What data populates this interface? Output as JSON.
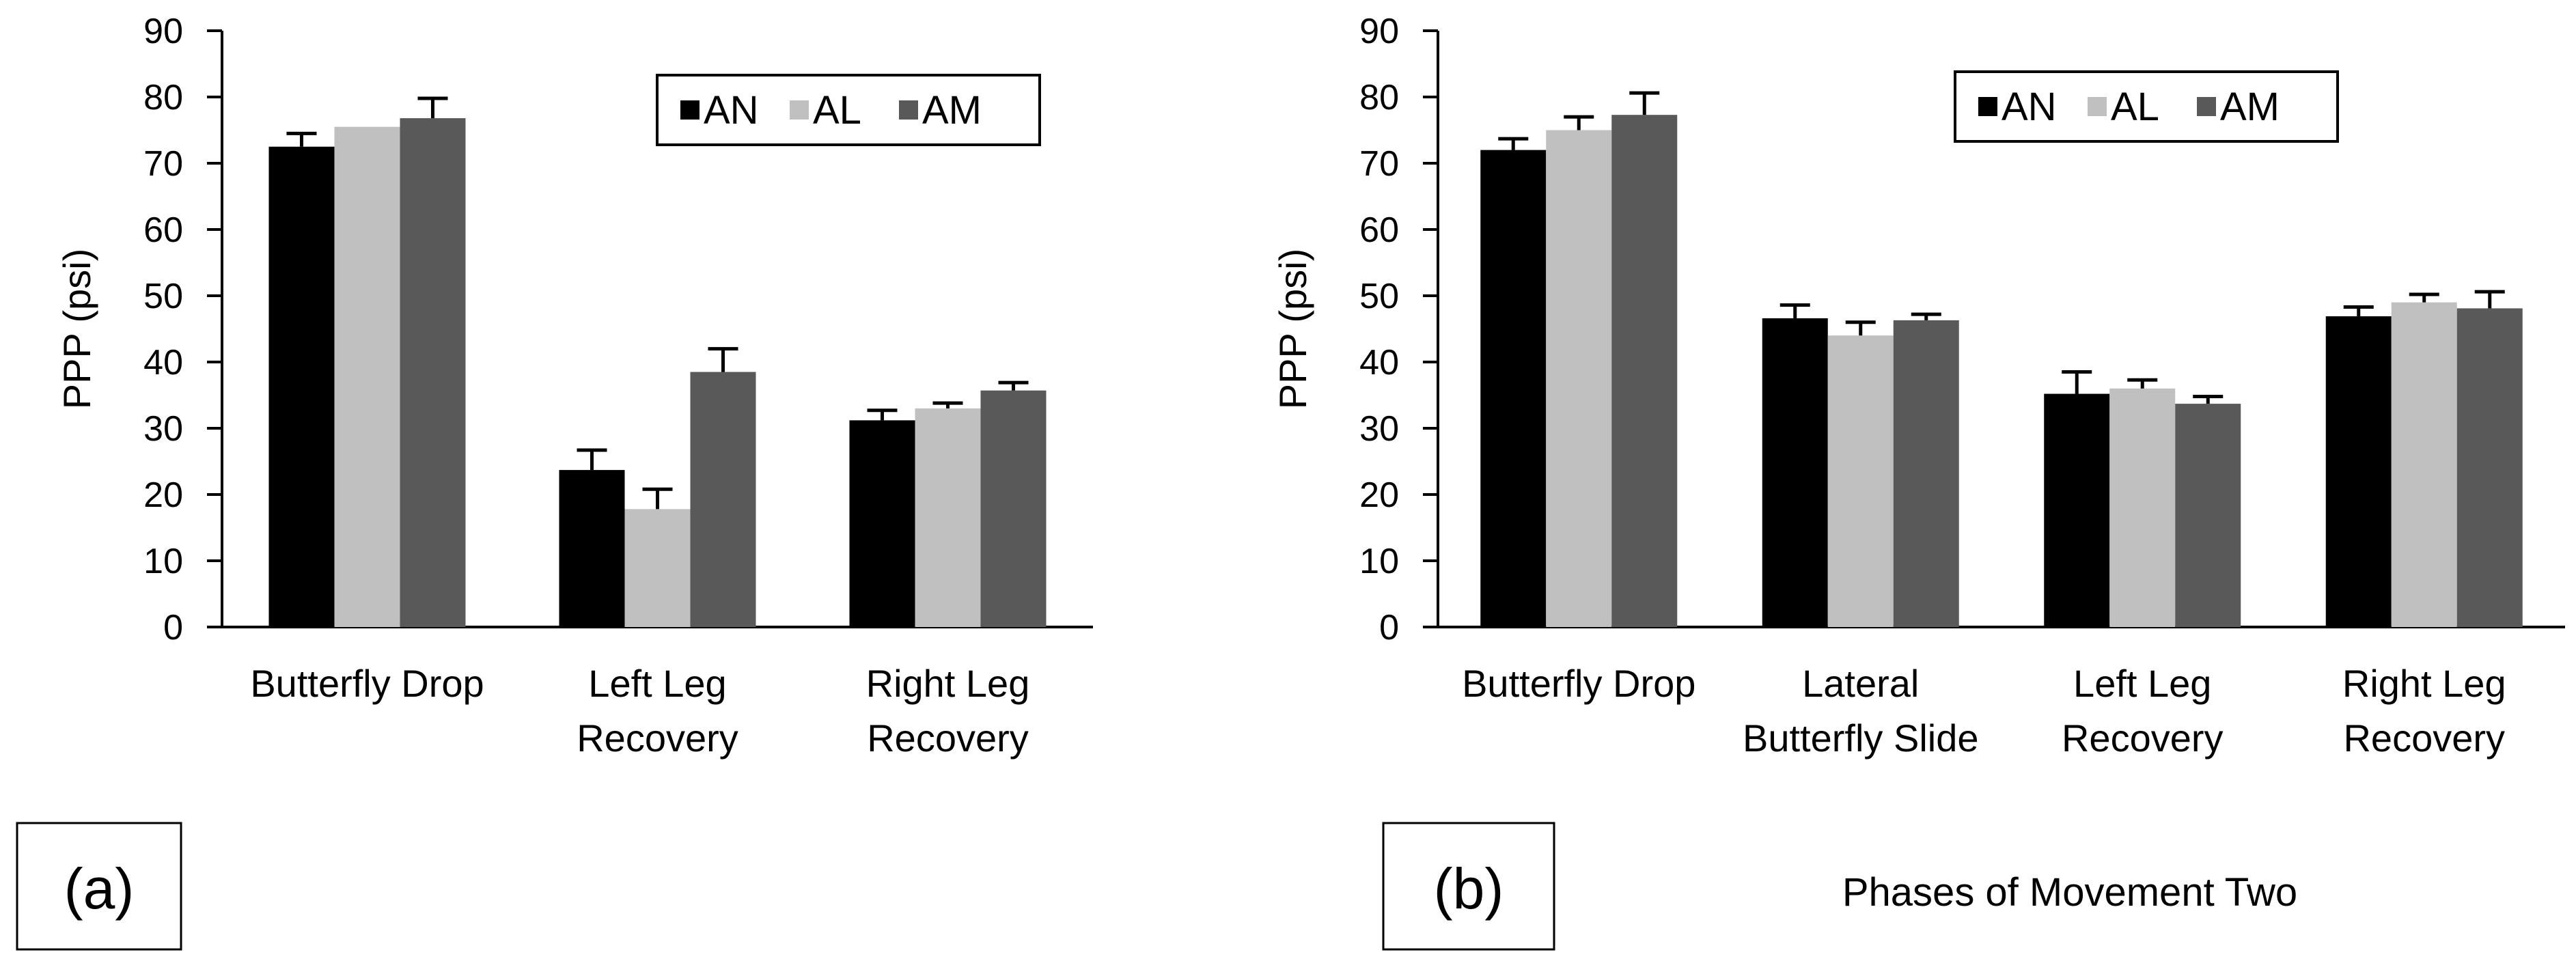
{
  "colors": {
    "AN": "#000000",
    "AL": "#c0c0c0",
    "AM": "#595959",
    "axis": "#000000",
    "background": "#ffffff"
  },
  "caption_b": "Phases of Movement Two",
  "chart_data": [
    {
      "type": "bar",
      "panel_label": "(a)",
      "ylabel": "PPP (psi)",
      "xlabel": "",
      "ylim": [
        0,
        90
      ],
      "yticks": [
        "0",
        "10",
        "20",
        "30",
        "40",
        "50",
        "60",
        "70",
        "80",
        "90"
      ],
      "grid": false,
      "legend_position": "top-right",
      "categories": [
        {
          "lines": [
            "Butterfly Drop"
          ]
        },
        {
          "lines": [
            "Left Leg",
            "Recovery"
          ]
        },
        {
          "lines": [
            "Right Leg",
            "Recovery"
          ]
        }
      ],
      "series": [
        {
          "name": "AN",
          "color": "#000000",
          "values": [
            72.5,
            23.7,
            31.2
          ],
          "errors": [
            2.0,
            3.0,
            1.5
          ]
        },
        {
          "name": "AL",
          "color": "#c0c0c0",
          "values": [
            75.5,
            17.8,
            33.0
          ],
          "errors": [
            0,
            3.0,
            0.8
          ]
        },
        {
          "name": "AM",
          "color": "#595959",
          "values": [
            76.8,
            38.5,
            35.7
          ],
          "errors": [
            3.0,
            3.5,
            1.2
          ]
        }
      ]
    },
    {
      "type": "bar",
      "panel_label": "(b)",
      "ylabel": "PPP (psi)",
      "xlabel": "Phases of Movement Two",
      "ylim": [
        0,
        90
      ],
      "yticks": [
        "0",
        "10",
        "20",
        "30",
        "40",
        "50",
        "60",
        "70",
        "80",
        "90"
      ],
      "grid": false,
      "legend_position": "top-right",
      "categories": [
        {
          "lines": [
            "Butterfly Drop"
          ]
        },
        {
          "lines": [
            "Lateral",
            "Butterfly Slide"
          ]
        },
        {
          "lines": [
            "Left Leg",
            "Recovery"
          ]
        },
        {
          "lines": [
            "Right Leg",
            "Recovery"
          ]
        }
      ],
      "series": [
        {
          "name": "AN",
          "color": "#000000",
          "values": [
            72.0,
            46.6,
            35.2,
            46.9
          ],
          "errors": [
            1.7,
            2.0,
            3.3,
            1.4
          ]
        },
        {
          "name": "AL",
          "color": "#c0c0c0",
          "values": [
            75.0,
            44.0,
            36.0,
            49.0
          ],
          "errors": [
            2.0,
            2.0,
            1.3,
            1.2
          ]
        },
        {
          "name": "AM",
          "color": "#595959",
          "values": [
            77.3,
            46.3,
            33.7,
            48.1
          ],
          "errors": [
            3.3,
            0.9,
            1.1,
            2.5
          ]
        }
      ]
    }
  ]
}
